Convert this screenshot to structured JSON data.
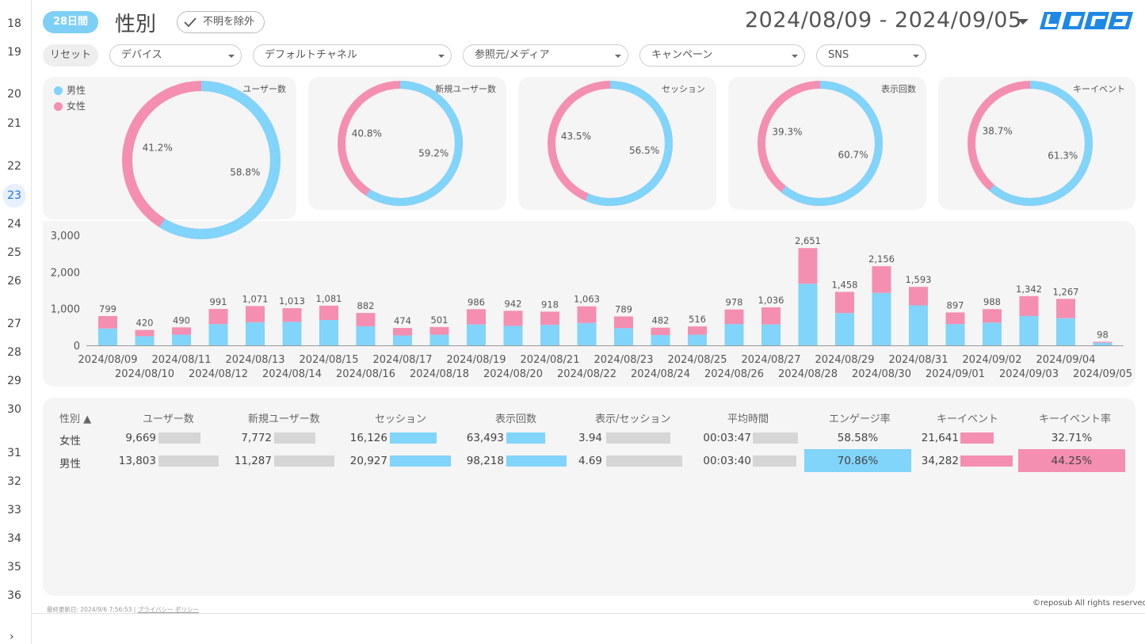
{
  "rail": {
    "rows": [
      {
        "n": "18",
        "top": 22
      },
      {
        "n": "19",
        "top": 58
      },
      {
        "n": "20",
        "top": 111
      },
      {
        "n": "21",
        "top": 148
      },
      {
        "n": "22",
        "top": 202
      },
      {
        "n": "23",
        "top": 239,
        "active": true
      },
      {
        "n": "24",
        "top": 275
      },
      {
        "n": "25",
        "top": 311
      },
      {
        "n": "26",
        "top": 347
      },
      {
        "n": "27",
        "top": 401
      },
      {
        "n": "28",
        "top": 437
      },
      {
        "n": "29",
        "top": 473
      },
      {
        "n": "30",
        "top": 509
      },
      {
        "n": "31",
        "top": 564
      },
      {
        "n": "32",
        "top": 600
      },
      {
        "n": "33",
        "top": 636
      },
      {
        "n": "34",
        "top": 672
      },
      {
        "n": "35",
        "top": 708
      },
      {
        "n": "36",
        "top": 744
      }
    ],
    "arrow": "›"
  },
  "header": {
    "period_badge": "28日間",
    "title": "性別",
    "exclude_chip": "不明を除外",
    "date_range": "2024/08/09 - 2024/09/05",
    "logo_text": "レポサブ"
  },
  "filters": {
    "reset": "リセット",
    "items": [
      "デバイス",
      "デフォルトチャネル",
      "参照元/メディア",
      "キャンペーン",
      "SNS"
    ]
  },
  "colors": {
    "male": "#81d4fa",
    "female": "#f48fb1",
    "neutral": "#d6d6d6",
    "accent": "#7ecff5"
  },
  "legend": {
    "male": "男性",
    "female": "女性"
  },
  "donuts": [
    {
      "title": "ユーザー数",
      "male_pct": 58.8,
      "female_pct": 41.2,
      "male_label": "58.8%",
      "female_label": "41.2%"
    },
    {
      "title": "新規ユーザー数",
      "male_pct": 59.2,
      "female_pct": 40.8,
      "male_label": "59.2%",
      "female_label": "40.8%"
    },
    {
      "title": "セッション",
      "male_pct": 56.5,
      "female_pct": 43.5,
      "male_label": "56.5%",
      "female_label": "43.5%"
    },
    {
      "title": "表示回数",
      "male_pct": 60.7,
      "female_pct": 39.3,
      "male_label": "60.7%",
      "female_label": "39.3%"
    },
    {
      "title": "キーイベント",
      "male_pct": 61.3,
      "female_pct": 38.7,
      "male_label": "61.3%",
      "female_label": "38.7%"
    }
  ],
  "chart_data": {
    "type": "bar",
    "stacked": true,
    "categories": [
      "2024/08/09",
      "2024/08/10",
      "2024/08/11",
      "2024/08/12",
      "2024/08/13",
      "2024/08/14",
      "2024/08/15",
      "2024/08/16",
      "2024/08/17",
      "2024/08/18",
      "2024/08/19",
      "2024/08/20",
      "2024/08/21",
      "2024/08/22",
      "2024/08/23",
      "2024/08/24",
      "2024/08/25",
      "2024/08/26",
      "2024/08/27",
      "2024/08/28",
      "2024/08/29",
      "2024/08/30",
      "2024/08/31",
      "2024/09/01",
      "2024/09/02",
      "2024/09/03",
      "2024/09/04",
      "2024/09/05"
    ],
    "series": [
      {
        "name": "男性",
        "values": [
          460,
          250,
          290,
          580,
          630,
          640,
          690,
          520,
          270,
          290,
          570,
          530,
          560,
          610,
          470,
          280,
          290,
          580,
          570,
          1680,
          880,
          1430,
          1090,
          580,
          620,
          800,
          740,
          70
        ]
      },
      {
        "name": "女性",
        "values": [
          339,
          170,
          200,
          411,
          441,
          373,
          391,
          362,
          204,
          211,
          416,
          412,
          358,
          453,
          319,
          202,
          226,
          398,
          466,
          971,
          578,
          726,
          503,
          317,
          368,
          542,
          527,
          28
        ]
      }
    ],
    "totals": [
      799,
      420,
      490,
      991,
      1071,
      1013,
      1081,
      882,
      474,
      501,
      986,
      942,
      918,
      1063,
      789,
      482,
      516,
      978,
      1036,
      2651,
      1458,
      2156,
      1593,
      897,
      988,
      1342,
      1267,
      98
    ],
    "total_labels": [
      "799",
      "420",
      "490",
      "991",
      "1,071",
      "1,013",
      "1,081",
      "882",
      "474",
      "501",
      "986",
      "942",
      "918",
      "1,063",
      "789",
      "482",
      "516",
      "978",
      "1,036",
      "2,651",
      "1,458",
      "2,156",
      "1,593",
      "897",
      "988",
      "1,342",
      "1,267",
      "98"
    ],
    "ylim": [
      0,
      3000
    ],
    "yticks": [
      0,
      1000,
      2000,
      3000
    ],
    "ytick_labels": [
      "0",
      "1,000",
      "2,000",
      "3,000"
    ],
    "grid": false
  },
  "table": {
    "headers": [
      "性別 ▲",
      "ユーザー数",
      "新規ユーザー数",
      "セッション",
      "表示回数",
      "表示/セッション",
      "平均時間",
      "エンゲージ率",
      "キーイベント",
      "キーイベント率"
    ],
    "rows": [
      {
        "label": "女性",
        "users": "9,669",
        "new_users": "7,772",
        "sessions": "16,126",
        "views": "63,493",
        "views_per_session": "3.94",
        "avg_time": "00:03:47",
        "engagement": "58.58%",
        "key_events": "21,641",
        "key_event_rate": "32.71%",
        "bars": {
          "users": 0.7,
          "new_users": 0.69,
          "sessions": 0.77,
          "views": 0.65,
          "views_per_session": 0.84,
          "avg_time": 1.0,
          "key_events": 0.63
        },
        "highlight": false
      },
      {
        "label": "男性",
        "users": "13,803",
        "new_users": "11,287",
        "sessions": "20,927",
        "views": "98,218",
        "views_per_session": "4.69",
        "avg_time": "00:03:40",
        "engagement": "70.86%",
        "key_events": "34,282",
        "key_event_rate": "44.25%",
        "bars": {
          "users": 1.0,
          "new_users": 1.0,
          "sessions": 1.0,
          "views": 1.0,
          "views_per_session": 1.0,
          "avg_time": 0.97,
          "key_events": 1.0
        },
        "highlight": true
      }
    ]
  },
  "footer": {
    "updated": "最終更新日: 2024/9/6 7:56:53",
    "separator": "|",
    "privacy": "プライバシー ポリシー",
    "copyright": "©reposub All rights reserved."
  }
}
